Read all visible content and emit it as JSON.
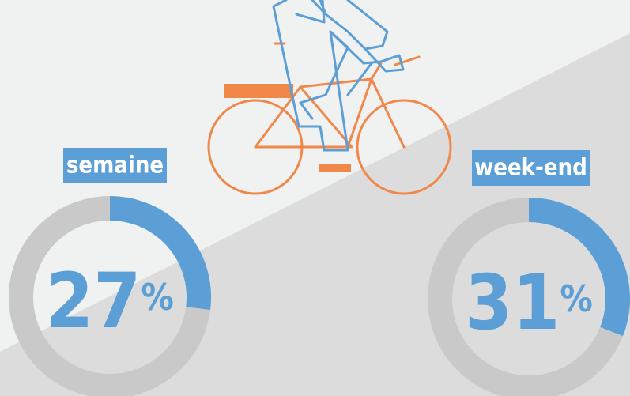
{
  "chart_data": [
    {
      "type": "donut",
      "title": "semaine",
      "values": [
        27
      ],
      "value_labels": [
        "27%"
      ],
      "color": "#5b9fd6",
      "track_color": "#c9c9c9"
    },
    {
      "type": "donut",
      "title": "week-end",
      "values": [
        31
      ],
      "value_labels": [
        "31%"
      ],
      "color": "#5b9fd6",
      "track_color": "#c9c9c9"
    }
  ]
}
